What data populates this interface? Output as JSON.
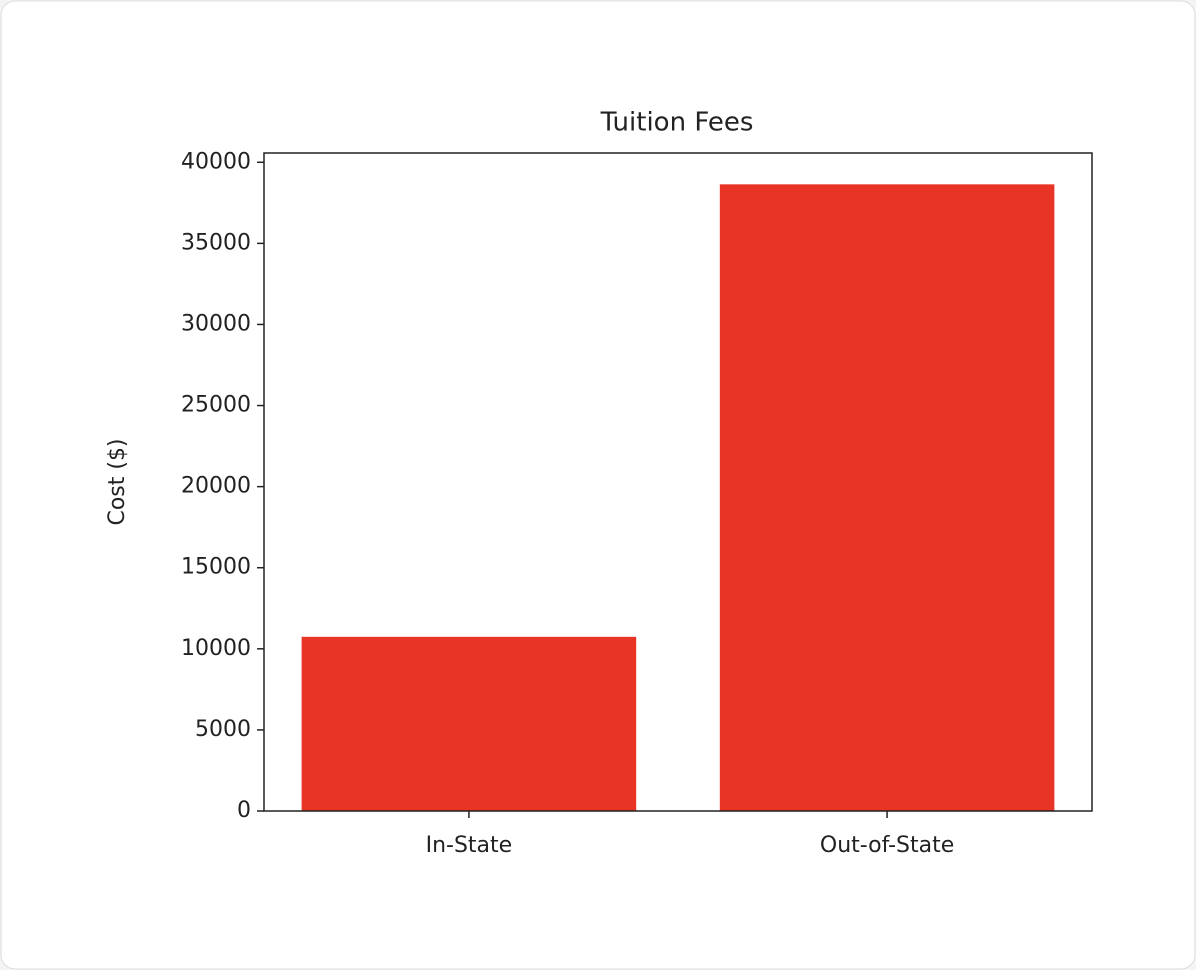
{
  "chart_data": {
    "type": "bar",
    "title": "Tuition Fees",
    "y_label": "Cost ($)",
    "categories": [
      "In-State",
      "Out-of-State"
    ],
    "values": [
      10740,
      38640
    ],
    "color": "#e83424",
    "ylim": [
      0,
      40572
    ],
    "yticks": [
      0,
      5000,
      10000,
      15000,
      20000,
      25000,
      30000,
      35000,
      40000
    ],
    "grid": false
  }
}
